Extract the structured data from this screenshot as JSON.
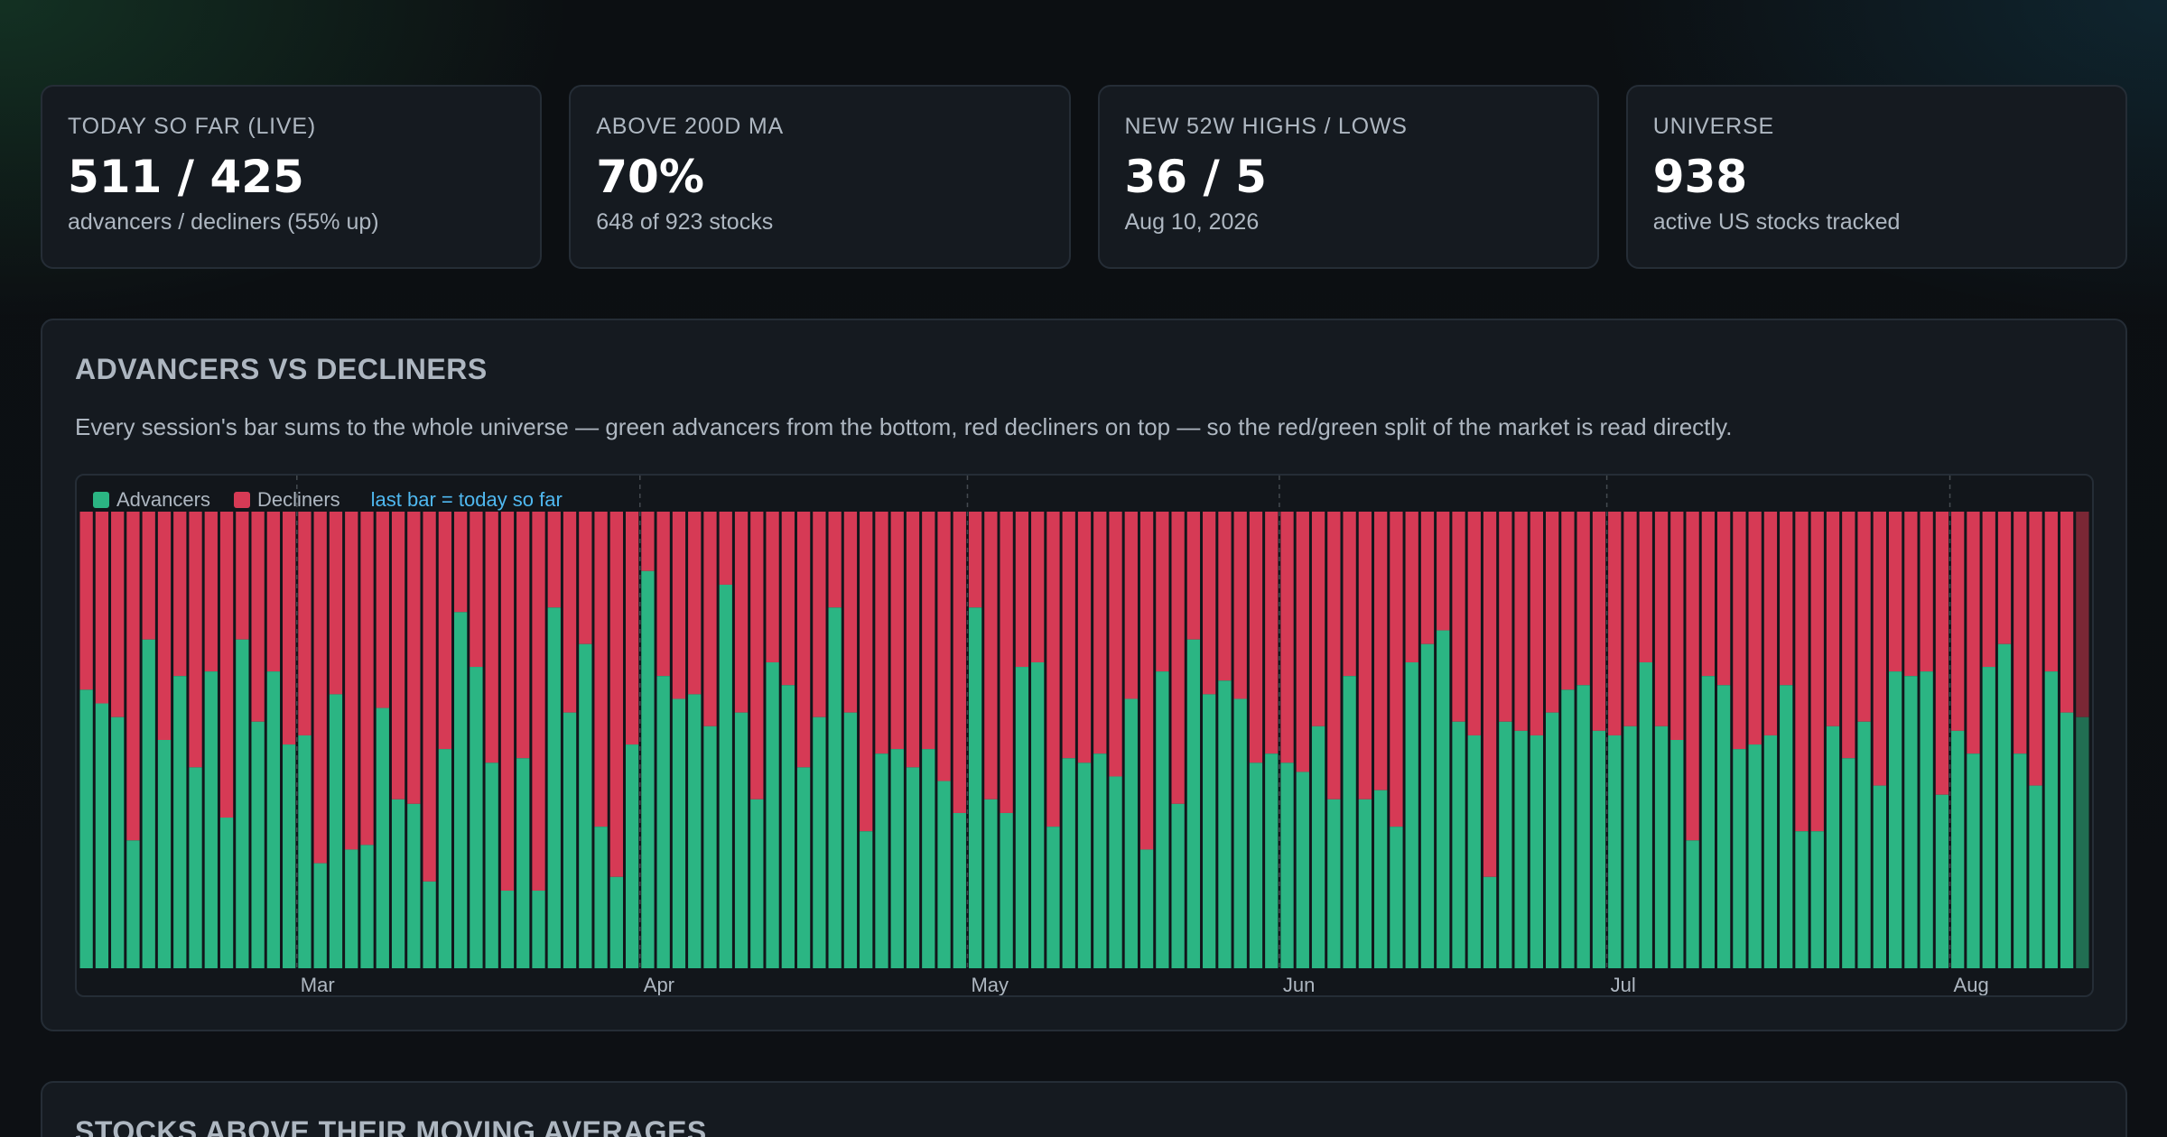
{
  "stats": [
    {
      "label": "TODAY SO FAR (LIVE)",
      "value": "511 / 425",
      "sub": "advancers / decliners (55% up)"
    },
    {
      "label": "ABOVE 200D MA",
      "value": "70%",
      "sub": "648 of 923 stocks"
    },
    {
      "label": "NEW 52W HIGHS / LOWS",
      "value": "36 / 5",
      "sub": "Aug 10, 2026"
    },
    {
      "label": "UNIVERSE",
      "value": "938",
      "sub": "active US stocks tracked"
    }
  ],
  "panel": {
    "title": "ADVANCERS VS DECLINERS",
    "description": "Every session's bar sums to the whole universe — green advancers from the bottom, red decliners on top — so the red/green split of the market is read directly."
  },
  "legend": {
    "advancers": "Advancers",
    "decliners": "Decliners",
    "note": "last bar = today so far"
  },
  "colors": {
    "advancers": "#2bb583",
    "decliners": "#d63a55",
    "today_advancers": "#216e52",
    "today_decliners": "#7a2735",
    "note": "#4fb8f0"
  },
  "chart_data": {
    "type": "bar",
    "stacked": true,
    "months": [
      {
        "label": "Mar",
        "index": 14
      },
      {
        "label": "Apr",
        "index": 36
      },
      {
        "label": "May",
        "index": 57
      },
      {
        "label": "Jun",
        "index": 77
      },
      {
        "label": "Jul",
        "index": 98
      },
      {
        "label": "Aug",
        "index": 120
      }
    ],
    "series": [
      {
        "name": "Advancers",
        "values": [
          0.61,
          0.58,
          0.55,
          0.28,
          0.72,
          0.5,
          0.64,
          0.44,
          0.65,
          0.33,
          0.72,
          0.54,
          0.65,
          0.49,
          0.51,
          0.23,
          0.6,
          0.26,
          0.27,
          0.57,
          0.37,
          0.36,
          0.19,
          0.48,
          0.78,
          0.66,
          0.45,
          0.17,
          0.46,
          0.17,
          0.79,
          0.56,
          0.71,
          0.31,
          0.2,
          0.49,
          0.87,
          0.64,
          0.59,
          0.6,
          0.53,
          0.84,
          0.56,
          0.37,
          0.67,
          0.62,
          0.44,
          0.55,
          0.79,
          0.56,
          0.3,
          0.47,
          0.48,
          0.44,
          0.48,
          0.41,
          0.34,
          0.79,
          0.37,
          0.34,
          0.66,
          0.67,
          0.31,
          0.46,
          0.45,
          0.47,
          0.42,
          0.59,
          0.26,
          0.65,
          0.36,
          0.72,
          0.6,
          0.63,
          0.59,
          0.45,
          0.47,
          0.45,
          0.43,
          0.53,
          0.37,
          0.64,
          0.37,
          0.39,
          0.31,
          0.67,
          0.71,
          0.74,
          0.54,
          0.51,
          0.2,
          0.54,
          0.52,
          0.51,
          0.56,
          0.61,
          0.62,
          0.52,
          0.51,
          0.53,
          0.67,
          0.53,
          0.5,
          0.28,
          0.64,
          0.62,
          0.48,
          0.49,
          0.51,
          0.62,
          0.3,
          0.3,
          0.53,
          0.46,
          0.54,
          0.4,
          0.65,
          0.64,
          0.65,
          0.38,
          0.52,
          0.47,
          0.66,
          0.71,
          0.47,
          0.4,
          0.65,
          0.56,
          0.55
        ]
      },
      {
        "name": "Decliners",
        "values": [
          0.39,
          0.42,
          0.45,
          0.72,
          0.28,
          0.5,
          0.36,
          0.56,
          0.35,
          0.67,
          0.28,
          0.46,
          0.35,
          0.51,
          0.49,
          0.77,
          0.4,
          0.74,
          0.73,
          0.43,
          0.63,
          0.64,
          0.81,
          0.52,
          0.22,
          0.34,
          0.55,
          0.83,
          0.54,
          0.83,
          0.21,
          0.44,
          0.29,
          0.69,
          0.8,
          0.51,
          0.13,
          0.36,
          0.41,
          0.4,
          0.47,
          0.16,
          0.44,
          0.63,
          0.33,
          0.38,
          0.56,
          0.45,
          0.21,
          0.44,
          0.7,
          0.53,
          0.52,
          0.56,
          0.52,
          0.59,
          0.66,
          0.21,
          0.63,
          0.66,
          0.34,
          0.33,
          0.69,
          0.54,
          0.55,
          0.53,
          0.58,
          0.41,
          0.74,
          0.35,
          0.64,
          0.28,
          0.4,
          0.37,
          0.41,
          0.55,
          0.53,
          0.55,
          0.57,
          0.47,
          0.63,
          0.36,
          0.63,
          0.61,
          0.69,
          0.33,
          0.29,
          0.26,
          0.46,
          0.49,
          0.8,
          0.46,
          0.48,
          0.49,
          0.44,
          0.39,
          0.38,
          0.48,
          0.49,
          0.47,
          0.33,
          0.47,
          0.5,
          0.72,
          0.36,
          0.38,
          0.52,
          0.51,
          0.49,
          0.38,
          0.7,
          0.7,
          0.47,
          0.54,
          0.46,
          0.6,
          0.35,
          0.36,
          0.35,
          0.62,
          0.48,
          0.53,
          0.34,
          0.29,
          0.53,
          0.6,
          0.35,
          0.44,
          0.45
        ]
      }
    ],
    "last_bar_is_today": true
  },
  "panel2": {
    "title": "STOCKS ABOVE THEIR MOVING AVERAGES"
  }
}
